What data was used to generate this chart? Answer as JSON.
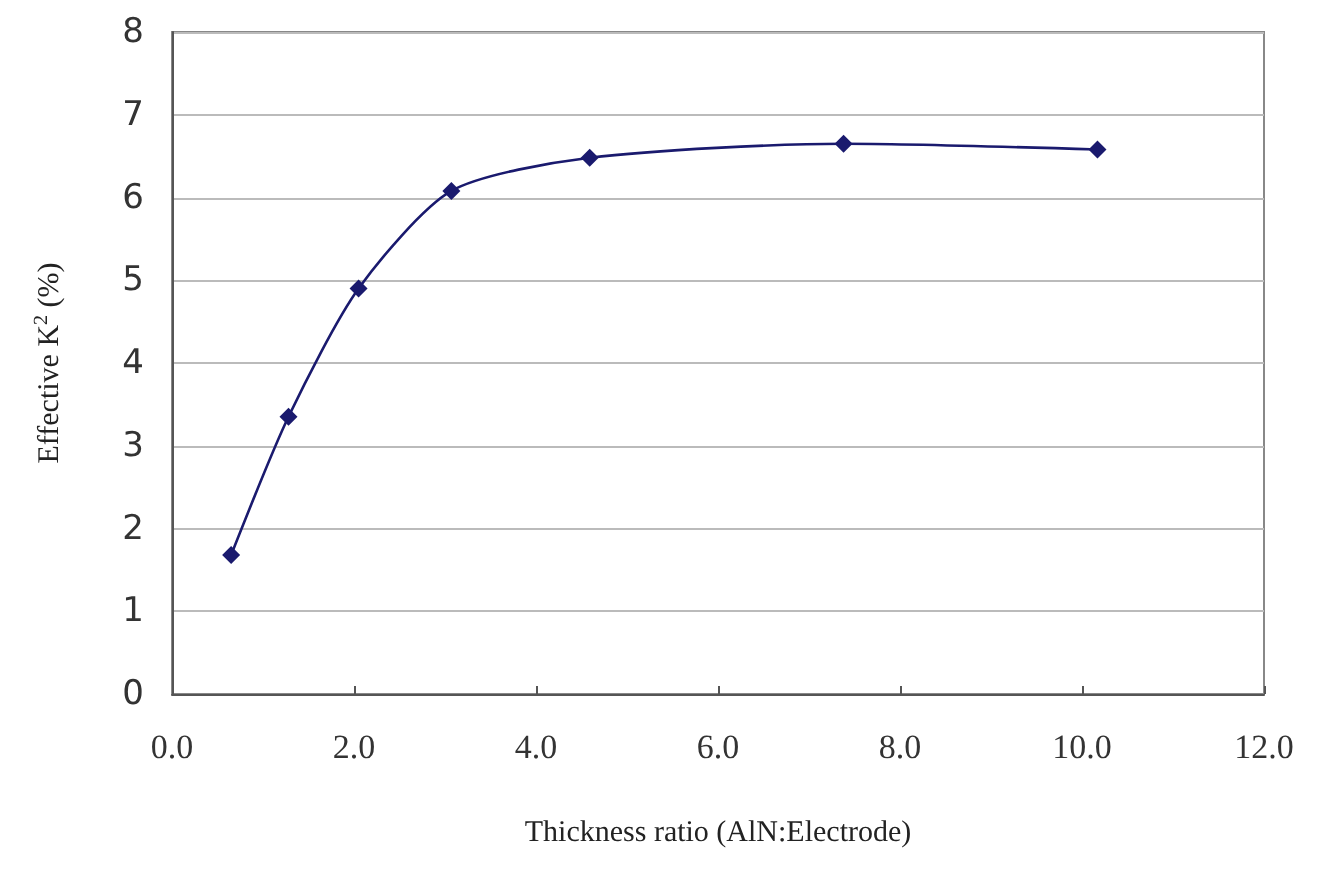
{
  "chart_data": {
    "type": "line",
    "xlabel": "Thickness ratio (AlN:Electrode)",
    "ylabel": "Effective K$^{2}$ (%)",
    "x": [
      0.65,
      1.28,
      2.05,
      3.07,
      4.59,
      7.38,
      10.17
    ],
    "series": [
      {
        "color": "#1a1a6e",
        "values": [
          1.68,
          3.35,
          4.9,
          6.08,
          6.48,
          6.65,
          6.58
        ]
      }
    ],
    "xlim": [
      0,
      12
    ],
    "xticks": [
      {
        "value": 0,
        "label": "0.0"
      },
      {
        "value": 2,
        "label": "2.0"
      },
      {
        "value": 4,
        "label": "4.0"
      },
      {
        "value": 6,
        "label": "6.0"
      },
      {
        "value": 8,
        "label": "8.0"
      },
      {
        "value": 10,
        "label": "10.0"
      },
      {
        "value": 12,
        "label": "12.0"
      }
    ],
    "ylim": [
      0,
      8
    ],
    "yticks": [
      0,
      1,
      2,
      3,
      4,
      5,
      6,
      7,
      8
    ],
    "grid": "y",
    "marker": "diamond",
    "line_style": "solid"
  }
}
